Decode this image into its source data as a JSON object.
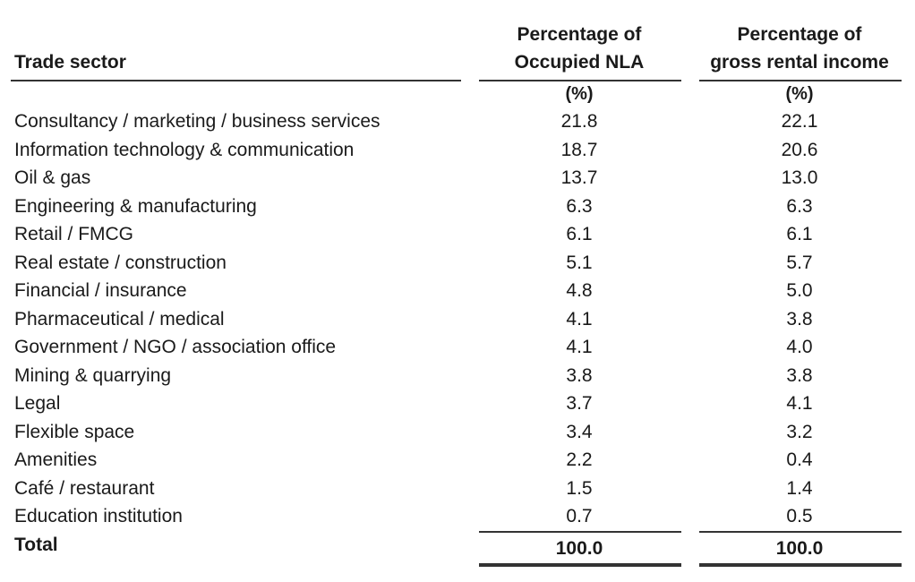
{
  "table": {
    "header": {
      "sector": "Trade sector",
      "col1_line1": "Percentage of",
      "col1_line2": "Occupied NLA",
      "col2_line1": "Percentage of",
      "col2_line2": "gross rental income",
      "unit1": "(%)",
      "unit2": "(%)"
    },
    "rows": [
      {
        "sector": "Consultancy / marketing / business services",
        "nla": "21.8",
        "income": "22.1"
      },
      {
        "sector": "Information technology & communication",
        "nla": "18.7",
        "income": "20.6"
      },
      {
        "sector": "Oil & gas",
        "nla": "13.7",
        "income": "13.0"
      },
      {
        "sector": "Engineering & manufacturing",
        "nla": "6.3",
        "income": "6.3"
      },
      {
        "sector": "Retail / FMCG",
        "nla": "6.1",
        "income": "6.1"
      },
      {
        "sector": "Real estate / construction",
        "nla": "5.1",
        "income": "5.7"
      },
      {
        "sector": "Financial / insurance",
        "nla": "4.8",
        "income": "5.0"
      },
      {
        "sector": "Pharmaceutical / medical",
        "nla": "4.1",
        "income": "3.8"
      },
      {
        "sector": "Government / NGO / association office",
        "nla": "4.1",
        "income": "4.0"
      },
      {
        "sector": "Mining & quarrying",
        "nla": "3.8",
        "income": "3.8"
      },
      {
        "sector": "Legal",
        "nla": "3.7",
        "income": "4.1"
      },
      {
        "sector": "Flexible space",
        "nla": "3.4",
        "income": "3.2"
      },
      {
        "sector": "Amenities",
        "nla": "2.2",
        "income": "0.4"
      },
      {
        "sector": "Café / restaurant",
        "nla": "1.5",
        "income": "1.4"
      },
      {
        "sector": "Education institution",
        "nla": "0.7",
        "income": "0.5"
      }
    ],
    "total": {
      "label": "Total",
      "nla": "100.0",
      "income": "100.0"
    }
  }
}
